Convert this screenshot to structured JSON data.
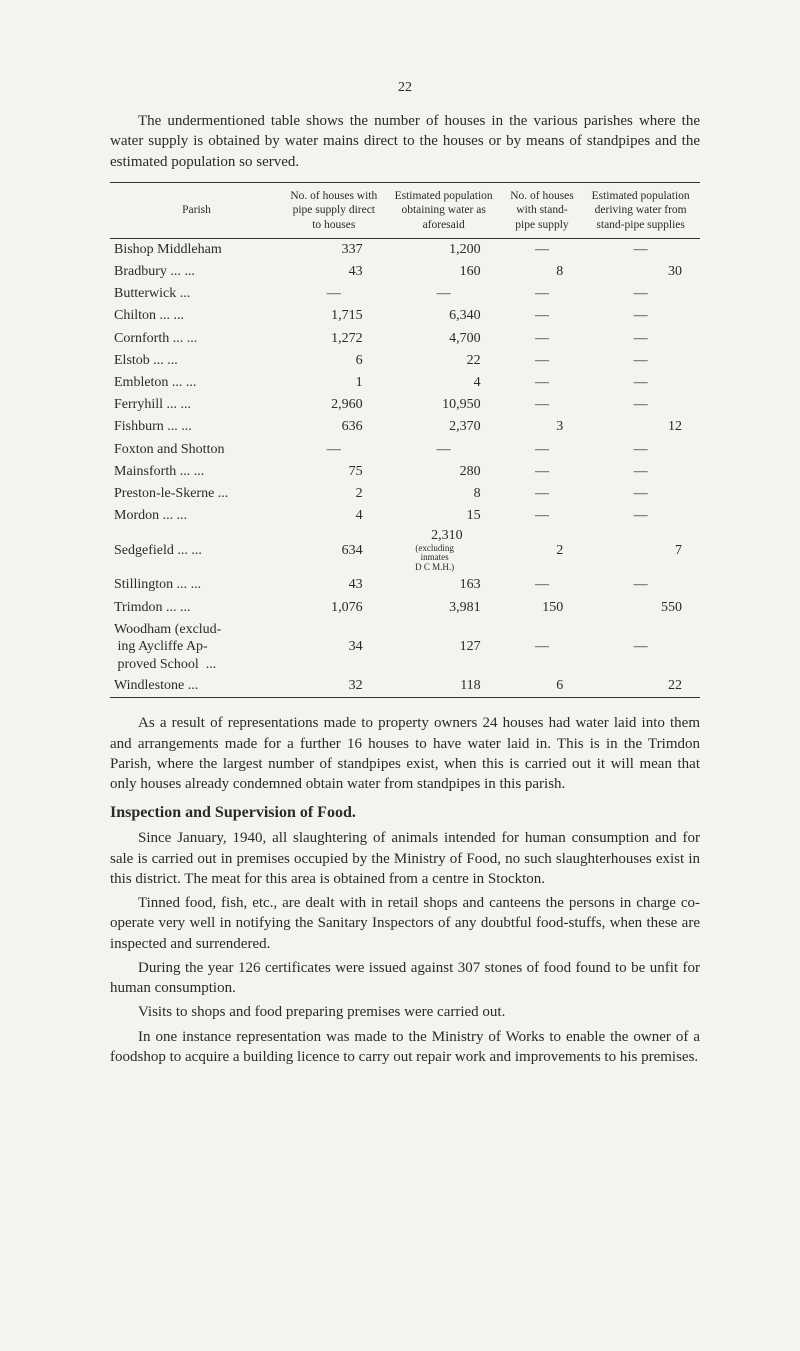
{
  "page_number": "22",
  "intro": "The undermentioned table shows the number of houses in the various parishes where the water supply is obtained by water mains direct to the houses or by means of standpipes and the estimated population so served.",
  "table": {
    "headers": [
      "Parish",
      "No. of houses with pipe supply direct to houses",
      "Estimated population obtaining water as aforesaid",
      "No. of houses with stand-pipe supply",
      "Estimated population deriving water from stand-pipe supplies"
    ],
    "rows": [
      {
        "parish": "Bishop Middleham",
        "a": "337",
        "b": "1,200",
        "c": "—",
        "d": "—"
      },
      {
        "parish": "Bradbury ...   ...",
        "a": "43",
        "b": "160",
        "c": "8",
        "d": "30"
      },
      {
        "parish": "Butterwick     ...",
        "a": "—",
        "b": "—",
        "c": "—",
        "d": "—"
      },
      {
        "parish": "Chilton    ...   ...",
        "a": "1,715",
        "b": "6,340",
        "c": "—",
        "d": "—"
      },
      {
        "parish": "Cornforth ...   ...",
        "a": "1,272",
        "b": "4,700",
        "c": "—",
        "d": "—"
      },
      {
        "parish": "Elstob     ...   ...",
        "a": "6",
        "b": "22",
        "c": "—",
        "d": "—"
      },
      {
        "parish": "Embleton ...   ...",
        "a": "1",
        "b": "4",
        "c": "—",
        "d": "—"
      },
      {
        "parish": "Ferryhill  ...   ...",
        "a": "2,960",
        "b": "10,950",
        "c": "—",
        "d": "—"
      },
      {
        "parish": "Fishburn  ...   ...",
        "a": "636",
        "b": "2,370",
        "c": "3",
        "d": "12"
      },
      {
        "parish": "Foxton and Shotton",
        "a": "—",
        "b": "—",
        "c": "—",
        "d": "—"
      },
      {
        "parish": "Mainsforth ...   ...",
        "a": "75",
        "b": "280",
        "c": "—",
        "d": "—"
      },
      {
        "parish": "Preston-le-Skerne ...",
        "a": "2",
        "b": "8",
        "c": "—",
        "d": "—"
      },
      {
        "parish": "Mordon    ...   ...",
        "a": "4",
        "b": "15",
        "c": "—",
        "d": "—"
      },
      {
        "parish": "Sedgefield ...   ...",
        "a": "634",
        "b": "2,310",
        "c": "2",
        "d": "7",
        "note": "(excluding inmates D C M.H.)"
      },
      {
        "parish": "Stillington ...   ...",
        "a": "43",
        "b": "163",
        "c": "—",
        "d": "—"
      },
      {
        "parish": "Trimdon   ...   ...",
        "a": "1,076",
        "b": "3,981",
        "c": "150",
        "d": "550"
      },
      {
        "parish": "Woodham (excluding Aycliffe Approved School ...",
        "a": "34",
        "b": "127",
        "c": "—",
        "d": "—",
        "multiline": true
      },
      {
        "parish": "Windlestone     ...",
        "a": "32",
        "b": "118",
        "c": "6",
        "d": "22"
      }
    ]
  },
  "para_after_table": "As a result of representations made to property owners 24 houses had water laid into them and arrangements made for a further 16 houses to have water laid in.  This is in the Trimdon Parish, where the largest number of standpipes exist, when this is carried out it will mean that only houses already condemned obtain water from standpipes in this parish.",
  "section_heading": "Inspection and Supervision of Food.",
  "paras": [
    "Since January, 1940, all slaughtering of animals intended for human consumption and for sale is carried out in premises occupied by the Ministry of Food, no such slaughterhouses exist in this district.  The meat for this area is obtained from a centre in Stockton.",
    "Tinned food, fish, etc., are dealt with in retail shops and canteens the persons in charge co-operate very well in notifying the Sanitary Inspectors of any doubtful food-stuffs, when these are inspected and surrendered.",
    "During the year 126 certificates were issued against 307 stones of food found to be unfit for human consumption.",
    "Visits to shops and food preparing premises were carried out.",
    "In one instance representation was made to the Ministry of Works to enable the owner of a foodshop to acquire a building licence to carry out repair work and improvements to his premises."
  ],
  "colors": {
    "background": "#f5f3ed",
    "text": "#2a2a2a",
    "rule": "#333333"
  }
}
